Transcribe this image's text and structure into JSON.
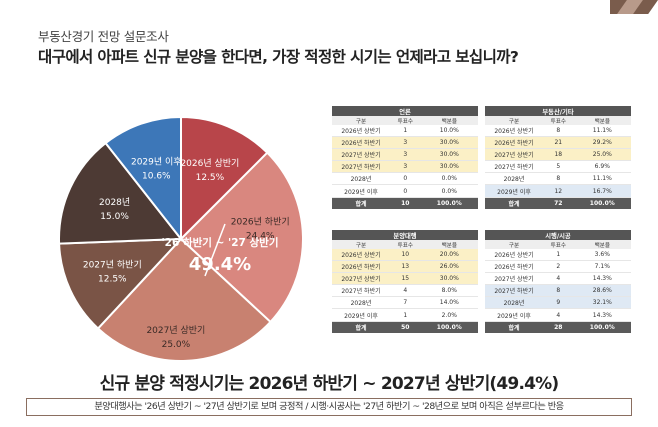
{
  "header": {
    "subtitle": "부동산경기 전망 설문조사",
    "title": "대구에서 아파트 신규 분양을 한다면, 가장 적정한 시기는 언제라고 보십니까?"
  },
  "colors": {
    "slice_1": "#b8454a",
    "slice_2": "#d9877f",
    "slice_3": "#c88170",
    "slice_4": "#7a5446",
    "slice_5": "#4d3a34",
    "slice_6": "#3d77b8",
    "highlight_yellow": "#fbf0c6",
    "highlight_blue": "#dfe9f4",
    "table_header": "#555555"
  },
  "chart_data": {
    "type": "pie",
    "slices": [
      {
        "label": "2026년 상반기",
        "value": 12.5,
        "value_label": "12.5%"
      },
      {
        "label": "2026년 하반기",
        "value": 24.4,
        "value_label": "24.4%"
      },
      {
        "label": "2027년 상반기",
        "value": 25.0,
        "value_label": "25.0%"
      },
      {
        "label": "2027년 하반기",
        "value": 12.5,
        "value_label": "12.5%"
      },
      {
        "label": "2028년",
        "value": 15.0,
        "value_label": "15.0%"
      },
      {
        "label": "2029년 이후",
        "value": 10.6,
        "value_label": "10.6%"
      }
    ],
    "callout": {
      "label": "'26 하반기 ~ '27 상반기",
      "value": "49.4%"
    }
  },
  "tables": [
    {
      "title": "언론",
      "columns": [
        "구분",
        "투표수",
        "백분율"
      ],
      "rows": [
        {
          "label": "2026년 상반기",
          "votes": "1",
          "pct": "10.0%",
          "hl": ""
        },
        {
          "label": "2026년 하반기",
          "votes": "3",
          "pct": "30.0%",
          "hl": "y"
        },
        {
          "label": "2027년 상반기",
          "votes": "3",
          "pct": "30.0%",
          "hl": "y"
        },
        {
          "label": "2027년 하반기",
          "votes": "3",
          "pct": "30.0%",
          "hl": "y"
        },
        {
          "label": "2028년",
          "votes": "0",
          "pct": "0.0%",
          "hl": ""
        },
        {
          "label": "2029년 이후",
          "votes": "0",
          "pct": "0.0%",
          "hl": ""
        }
      ],
      "total": {
        "label": "합계",
        "votes": "10",
        "pct": "100.0%"
      }
    },
    {
      "title": "부동산/기타",
      "columns": [
        "구분",
        "투표수",
        "백분율"
      ],
      "rows": [
        {
          "label": "2026년 상반기",
          "votes": "8",
          "pct": "11.1%",
          "hl": ""
        },
        {
          "label": "2026년 하반기",
          "votes": "21",
          "pct": "29.2%",
          "hl": "y"
        },
        {
          "label": "2027년 상반기",
          "votes": "18",
          "pct": "25.0%",
          "hl": "y"
        },
        {
          "label": "2027년 하반기",
          "votes": "5",
          "pct": "6.9%",
          "hl": ""
        },
        {
          "label": "2028년",
          "votes": "8",
          "pct": "11.1%",
          "hl": ""
        },
        {
          "label": "2029년 이후",
          "votes": "12",
          "pct": "16.7%",
          "hl": "b"
        }
      ],
      "total": {
        "label": "합계",
        "votes": "72",
        "pct": "100.0%"
      }
    },
    {
      "title": "분양대행",
      "columns": [
        "구분",
        "투표수",
        "백분율"
      ],
      "rows": [
        {
          "label": "2026년 상반기",
          "votes": "10",
          "pct": "20.0%",
          "hl": "y"
        },
        {
          "label": "2026년 하반기",
          "votes": "13",
          "pct": "26.0%",
          "hl": "y"
        },
        {
          "label": "2027년 상반기",
          "votes": "15",
          "pct": "30.0%",
          "hl": "y"
        },
        {
          "label": "2027년 하반기",
          "votes": "4",
          "pct": "8.0%",
          "hl": ""
        },
        {
          "label": "2028년",
          "votes": "7",
          "pct": "14.0%",
          "hl": ""
        },
        {
          "label": "2029년 이후",
          "votes": "1",
          "pct": "2.0%",
          "hl": ""
        }
      ],
      "total": {
        "label": "합계",
        "votes": "50",
        "pct": "100.0%"
      }
    },
    {
      "title": "시행/시공",
      "columns": [
        "구분",
        "투표수",
        "백분율"
      ],
      "rows": [
        {
          "label": "2026년 상반기",
          "votes": "1",
          "pct": "3.6%",
          "hl": ""
        },
        {
          "label": "2026년 하반기",
          "votes": "2",
          "pct": "7.1%",
          "hl": ""
        },
        {
          "label": "2027년 상반기",
          "votes": "4",
          "pct": "14.3%",
          "hl": ""
        },
        {
          "label": "2027년 하반기",
          "votes": "8",
          "pct": "28.6%",
          "hl": "b"
        },
        {
          "label": "2028년",
          "votes": "9",
          "pct": "32.1%",
          "hl": "b"
        },
        {
          "label": "2029년 이후",
          "votes": "4",
          "pct": "14.3%",
          "hl": ""
        }
      ],
      "total": {
        "label": "합계",
        "votes": "28",
        "pct": "100.0%"
      }
    }
  ],
  "headline": "신규 분양 적정시기는 2026년 하반기 ~ 2027년 상반기(49.4%)",
  "footer_note": "분양대행사는 '26년 상반기 ~ '27년 상반기로 보며 긍정적 / 시행·시공사는 '27년 하반기 ~ '28년으로 보며 아직은 섣부르다는 반응"
}
